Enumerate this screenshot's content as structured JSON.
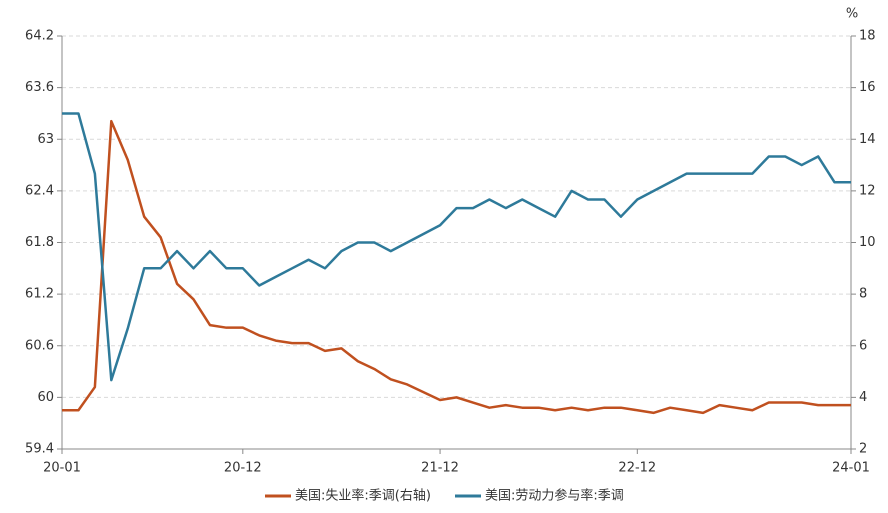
{
  "chart_data": {
    "type": "line",
    "categories": [
      "20-01",
      null,
      null,
      null,
      null,
      null,
      null,
      null,
      null,
      null,
      null,
      "20-12",
      null,
      null,
      null,
      null,
      null,
      null,
      null,
      null,
      null,
      null,
      null,
      "21-12",
      null,
      null,
      null,
      null,
      null,
      null,
      null,
      null,
      null,
      null,
      null,
      "22-12",
      null,
      null,
      null,
      null,
      null,
      null,
      null,
      null,
      null,
      null,
      null,
      null,
      "24-01"
    ],
    "series": [
      {
        "name": "美国:失业率:季调(右轴)",
        "color": "#c0501f",
        "axis": "y2",
        "values": [
          3.5,
          3.5,
          4.4,
          14.7,
          13.2,
          11.0,
          10.2,
          8.4,
          7.8,
          6.8,
          6.7,
          6.7,
          6.4,
          6.2,
          6.1,
          6.1,
          5.8,
          5.9,
          5.4,
          5.1,
          4.7,
          4.5,
          4.2,
          3.9,
          4.0,
          3.8,
          3.6,
          3.7,
          3.6,
          3.6,
          3.5,
          3.6,
          3.5,
          3.6,
          3.6,
          3.5,
          3.4,
          3.6,
          3.5,
          3.4,
          3.7,
          3.6,
          3.5,
          3.8,
          3.8,
          3.8,
          3.7,
          3.7,
          3.7
        ]
      },
      {
        "name": "美国:劳动力参与率:季调",
        "color": "#2e7a9a",
        "values": [
          63.3,
          63.3,
          62.6,
          60.2,
          60.8,
          61.5,
          61.5,
          61.7,
          61.5,
          61.7,
          61.5,
          61.5,
          61.3,
          61.4,
          61.5,
          61.6,
          61.5,
          61.7,
          61.8,
          61.8,
          61.7,
          61.8,
          61.9,
          62.0,
          62.2,
          62.2,
          62.3,
          62.2,
          62.3,
          62.2,
          62.1,
          62.4,
          62.3,
          62.3,
          62.1,
          62.3,
          62.4,
          62.5,
          62.6,
          62.6,
          62.6,
          62.6,
          62.6,
          62.8,
          62.8,
          62.7,
          62.8,
          62.5,
          62.5
        ]
      }
    ],
    "ylim": [
      59.4,
      64.2
    ],
    "yticks": [
      59.4,
      60,
      60.6,
      61.2,
      61.8,
      62.4,
      63,
      63.6,
      64.2
    ],
    "y2lim": [
      2,
      18
    ],
    "y2ticks": [
      2,
      4,
      6,
      8,
      10,
      12,
      14,
      16,
      18
    ],
    "y2_label": "%",
    "grid": true
  }
}
